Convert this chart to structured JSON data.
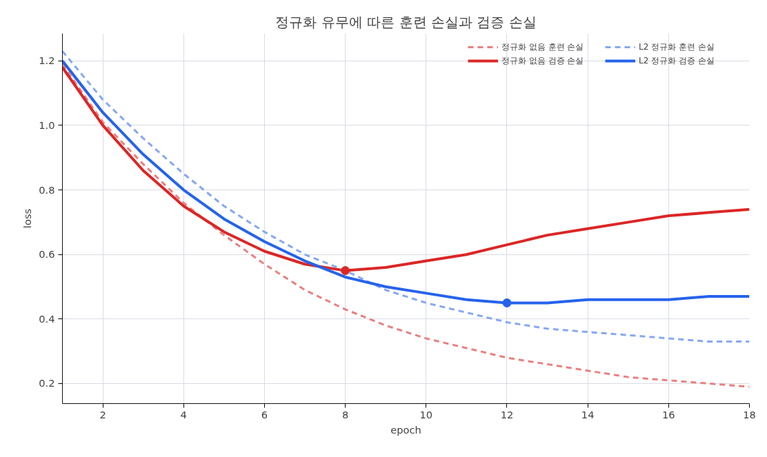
{
  "chart_data": {
    "type": "line",
    "title": "정규화 유무에 따른 훈련 손실과 검증 손실",
    "xlabel": "epoch",
    "ylabel": "loss",
    "x": [
      1,
      2,
      3,
      4,
      5,
      6,
      7,
      8,
      9,
      10,
      11,
      12,
      13,
      14,
      15,
      16,
      17,
      18
    ],
    "xlim": [
      1,
      18
    ],
    "xticks": [
      2,
      4,
      6,
      8,
      10,
      12,
      14,
      16,
      18
    ],
    "ylim": [
      0.138,
      1.285
    ],
    "yticks": [
      0.2,
      0.4,
      0.6,
      0.8,
      {
        "value": 1.0,
        "label": "1.0"
      },
      1.2
    ],
    "grid": true,
    "legend": "top right",
    "series": [
      {
        "name": "정규화 없음 훈련 손실",
        "color": "#e88080",
        "line_style": "dashed",
        "values": [
          1.19,
          1.01,
          0.88,
          0.76,
          0.66,
          0.57,
          0.49,
          0.43,
          0.38,
          0.34,
          0.31,
          0.28,
          0.26,
          0.24,
          0.22,
          0.21,
          0.2,
          0.19
        ]
      },
      {
        "name": "정규화 없음 검증 손실",
        "color": "#dc2626",
        "line_style": "solid",
        "values": [
          1.18,
          1.0,
          0.86,
          0.75,
          0.67,
          0.61,
          0.57,
          0.55,
          0.56,
          0.58,
          0.6,
          0.63,
          0.66,
          0.68,
          0.7,
          0.72,
          0.73,
          0.74
        ]
      },
      {
        "name": "L2 정규화 훈련 손실",
        "color": "#86a8f2",
        "line_style": "dashed",
        "values": [
          1.23,
          1.08,
          0.96,
          0.85,
          0.75,
          0.67,
          0.6,
          0.55,
          0.49,
          0.45,
          0.42,
          0.39,
          0.37,
          0.36,
          0.35,
          0.34,
          0.33,
          0.33
        ]
      },
      {
        "name": "L2 정규화 검증 손실",
        "color": "#2563eb",
        "line_style": "solid",
        "values": [
          1.2,
          1.04,
          0.91,
          0.8,
          0.71,
          0.64,
          0.58,
          0.53,
          0.5,
          0.48,
          0.46,
          0.45,
          0.45,
          0.46,
          0.46,
          0.46,
          0.47,
          0.47
        ]
      },
      {
        "type": "scatter",
        "marker": "circle",
        "color": "#dc2626",
        "x": [
          8
        ],
        "values": [
          0.55
        ]
      },
      {
        "type": "scatter",
        "marker": "circle",
        "color": "#2563eb",
        "x": [
          12
        ],
        "values": [
          0.45
        ]
      }
    ]
  }
}
